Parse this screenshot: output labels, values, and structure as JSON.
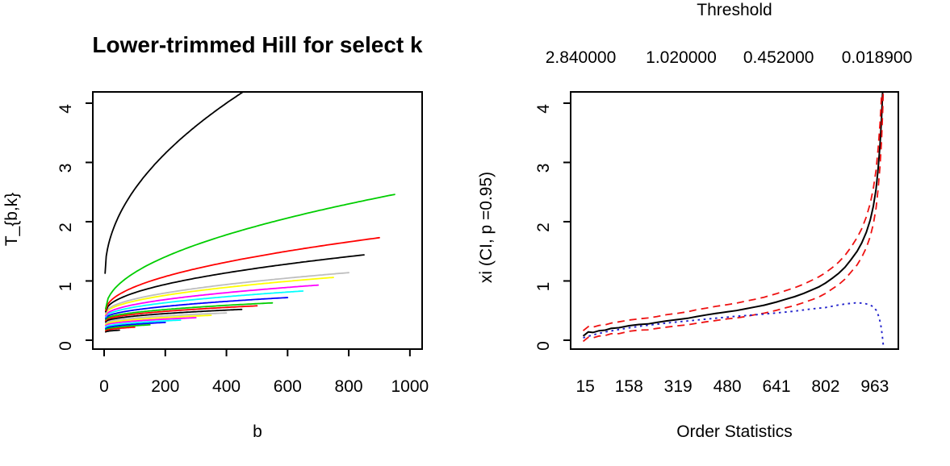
{
  "chart_data": [
    {
      "type": "line",
      "title": "Lower-trimmed Hill for select k",
      "xlabel": "b",
      "ylabel": "T_{b,k}",
      "xlim": [
        -37,
        1040
      ],
      "ylim": [
        -0.15,
        4.19
      ],
      "xticks": [
        0,
        200,
        400,
        600,
        800,
        1000
      ],
      "yticks": [
        0,
        1,
        2,
        3,
        4
      ],
      "grid": false,
      "legend": "none",
      "curve_model": "y = y0 + (y1-y0)*sqrt((x-x0)/(x1-x0))",
      "curves": [
        {
          "name": "trimmed-hill-k1",
          "color": "#000000",
          "x0": 5,
          "y0": 0.14,
          "x1": 50,
          "y1": 0.17
        },
        {
          "name": "trimmed-hill-k2",
          "color": "#FF0000",
          "x0": 5,
          "y0": 0.16,
          "x1": 100,
          "y1": 0.22
        },
        {
          "name": "trimmed-hill-k3",
          "color": "#00CD00",
          "x0": 5,
          "y0": 0.18,
          "x1": 150,
          "y1": 0.26
        },
        {
          "name": "trimmed-hill-k4",
          "color": "#0000FF",
          "x0": 5,
          "y0": 0.2,
          "x1": 200,
          "y1": 0.3
        },
        {
          "name": "trimmed-hill-k5",
          "color": "#00FFFF",
          "x0": 5,
          "y0": 0.22,
          "x1": 250,
          "y1": 0.34
        },
        {
          "name": "trimmed-hill-k6",
          "color": "#FF00FF",
          "x0": 5,
          "y0": 0.25,
          "x1": 300,
          "y1": 0.38
        },
        {
          "name": "trimmed-hill-k7",
          "color": "#FFFF00",
          "x0": 5,
          "y0": 0.27,
          "x1": 350,
          "y1": 0.42
        },
        {
          "name": "trimmed-hill-k8",
          "color": "#BEBEBE",
          "x0": 5,
          "y0": 0.29,
          "x1": 400,
          "y1": 0.46
        },
        {
          "name": "trimmed-hill-k9",
          "color": "#000000",
          "x0": 5,
          "y0": 0.31,
          "x1": 450,
          "y1": 0.52
        },
        {
          "name": "trimmed-hill-k10",
          "color": "#FF0000",
          "x0": 5,
          "y0": 0.33,
          "x1": 500,
          "y1": 0.58
        },
        {
          "name": "trimmed-hill-k11",
          "color": "#00CD00",
          "x0": 5,
          "y0": 0.35,
          "x1": 550,
          "y1": 0.63
        },
        {
          "name": "trimmed-hill-k12",
          "color": "#0000FF",
          "x0": 5,
          "y0": 0.37,
          "x1": 600,
          "y1": 0.72
        },
        {
          "name": "trimmed-hill-k13",
          "color": "#00FFFF",
          "x0": 5,
          "y0": 0.39,
          "x1": 650,
          "y1": 0.83
        },
        {
          "name": "trimmed-hill-k14",
          "color": "#FF00FF",
          "x0": 5,
          "y0": 0.41,
          "x1": 700,
          "y1": 0.93
        },
        {
          "name": "trimmed-hill-k15",
          "color": "#FFFF00",
          "x0": 5,
          "y0": 0.44,
          "x1": 750,
          "y1": 1.06
        },
        {
          "name": "trimmed-hill-k16",
          "color": "#BEBEBE",
          "x0": 5,
          "y0": 0.46,
          "x1": 800,
          "y1": 1.14
        },
        {
          "name": "trimmed-hill-k17",
          "color": "#000000",
          "x0": 5,
          "y0": 0.48,
          "x1": 850,
          "y1": 1.44
        },
        {
          "name": "trimmed-hill-k18",
          "color": "#FF0000",
          "x0": 5,
          "y0": 0.5,
          "x1": 900,
          "y1": 1.73
        },
        {
          "name": "trimmed-hill-k19",
          "color": "#00CD00",
          "x0": 5,
          "y0": 0.53,
          "x1": 950,
          "y1": 2.46
        },
        {
          "name": "trimmed-hill-k20",
          "color": "#000000",
          "x0": 3,
          "y0": 1.13,
          "x1": 475,
          "y1": 4.26
        }
      ]
    },
    {
      "type": "line",
      "top_axis_title": "Threshold",
      "top_ticks": [
        {
          "label": "2.840000",
          "x": 0
        },
        {
          "label": "1.020000",
          "x": 329
        },
        {
          "label": "0.452000",
          "x": 648
        },
        {
          "label": "0.018900",
          "x": 970
        }
      ],
      "xlabel": "Order Statistics",
      "ylabel": "xi (CI, p =0.95)",
      "xlim": [
        -33,
        1040
      ],
      "ylim": [
        -0.15,
        4.19
      ],
      "xticks": [
        15,
        158,
        319,
        480,
        641,
        802,
        963
      ],
      "yticks": [
        0,
        1,
        2,
        3,
        4
      ],
      "grid": false,
      "legend": "none",
      "series": [
        {
          "name": "xi-estimate",
          "color": "#000000",
          "style": "solid",
          "width": 2,
          "points": [
            [
              8,
              0.07
            ],
            [
              25,
              0.14
            ],
            [
              40,
              0.13
            ],
            [
              60,
              0.16
            ],
            [
              80,
              0.17
            ],
            [
              100,
              0.2
            ],
            [
              125,
              0.21
            ],
            [
              158,
              0.245
            ],
            [
              190,
              0.265
            ],
            [
              220,
              0.275
            ],
            [
              250,
              0.3
            ],
            [
              280,
              0.325
            ],
            [
              319,
              0.35
            ],
            [
              350,
              0.37
            ],
            [
              380,
              0.4
            ],
            [
              410,
              0.425
            ],
            [
              440,
              0.45
            ],
            [
              480,
              0.48
            ],
            [
              510,
              0.5
            ],
            [
              540,
              0.53
            ],
            [
              570,
              0.56
            ],
            [
              600,
              0.59
            ],
            [
              641,
              0.645
            ],
            [
              670,
              0.69
            ],
            [
              700,
              0.735
            ],
            [
              730,
              0.79
            ],
            [
              760,
              0.855
            ],
            [
              780,
              0.9
            ],
            [
              802,
              0.965
            ],
            [
              825,
              1.05
            ],
            [
              845,
              1.13
            ],
            [
              865,
              1.23
            ],
            [
              885,
              1.36
            ],
            [
              905,
              1.5
            ],
            [
              920,
              1.64
            ],
            [
              935,
              1.82
            ],
            [
              948,
              2.03
            ],
            [
              958,
              2.26
            ],
            [
              967,
              2.55
            ],
            [
              974,
              2.9
            ],
            [
              980,
              3.3
            ],
            [
              985,
              3.75
            ],
            [
              989,
              4.25
            ]
          ]
        },
        {
          "name": "ci-upper",
          "color": "#EE1111",
          "style": "dashed",
          "width": 1.8,
          "points": [
            [
              8,
              0.16
            ],
            [
              25,
              0.23
            ],
            [
              40,
              0.22
            ],
            [
              60,
              0.25
            ],
            [
              80,
              0.26
            ],
            [
              100,
              0.29
            ],
            [
              125,
              0.31
            ],
            [
              158,
              0.34
            ],
            [
              190,
              0.36
            ],
            [
              220,
              0.375
            ],
            [
              250,
              0.4
            ],
            [
              280,
              0.43
            ],
            [
              319,
              0.455
            ],
            [
              350,
              0.48
            ],
            [
              380,
              0.515
            ],
            [
              410,
              0.54
            ],
            [
              440,
              0.57
            ],
            [
              480,
              0.6
            ],
            [
              510,
              0.625
            ],
            [
              540,
              0.66
            ],
            [
              570,
              0.69
            ],
            [
              600,
              0.725
            ],
            [
              641,
              0.785
            ],
            [
              670,
              0.835
            ],
            [
              700,
              0.885
            ],
            [
              730,
              0.945
            ],
            [
              760,
              1.02
            ],
            [
              780,
              1.07
            ],
            [
              802,
              1.14
            ],
            [
              825,
              1.23
            ],
            [
              845,
              1.32
            ],
            [
              865,
              1.43
            ],
            [
              885,
              1.57
            ],
            [
              905,
              1.73
            ],
            [
              920,
              1.88
            ],
            [
              935,
              2.08
            ],
            [
              948,
              2.31
            ],
            [
              958,
              2.56
            ],
            [
              967,
              2.87
            ],
            [
              974,
              3.24
            ],
            [
              980,
              3.66
            ],
            [
              985,
              4.13
            ],
            [
              987,
              4.3
            ]
          ]
        },
        {
          "name": "ci-lower",
          "color": "#EE1111",
          "style": "dashed",
          "width": 1.8,
          "points": [
            [
              8,
              -0.02
            ],
            [
              25,
              0.05
            ],
            [
              40,
              0.04
            ],
            [
              60,
              0.07
            ],
            [
              80,
              0.08
            ],
            [
              100,
              0.11
            ],
            [
              125,
              0.11
            ],
            [
              158,
              0.15
            ],
            [
              190,
              0.17
            ],
            [
              220,
              0.175
            ],
            [
              250,
              0.2
            ],
            [
              280,
              0.22
            ],
            [
              319,
              0.245
            ],
            [
              350,
              0.26
            ],
            [
              380,
              0.285
            ],
            [
              410,
              0.31
            ],
            [
              440,
              0.33
            ],
            [
              480,
              0.36
            ],
            [
              510,
              0.375
            ],
            [
              540,
              0.4
            ],
            [
              570,
              0.43
            ],
            [
              600,
              0.455
            ],
            [
              641,
              0.505
            ],
            [
              670,
              0.545
            ],
            [
              700,
              0.585
            ],
            [
              730,
              0.635
            ],
            [
              760,
              0.69
            ],
            [
              780,
              0.73
            ],
            [
              802,
              0.79
            ],
            [
              825,
              0.87
            ],
            [
              845,
              0.94
            ],
            [
              865,
              1.03
            ],
            [
              885,
              1.15
            ],
            [
              905,
              1.27
            ],
            [
              920,
              1.4
            ],
            [
              935,
              1.56
            ],
            [
              948,
              1.75
            ],
            [
              958,
              1.96
            ],
            [
              967,
              2.23
            ],
            [
              974,
              2.56
            ],
            [
              980,
              2.94
            ],
            [
              985,
              3.37
            ],
            [
              989,
              3.9
            ],
            [
              991,
              4.3
            ]
          ]
        },
        {
          "name": "alt-estimate",
          "color": "#2222CC",
          "style": "dotted",
          "width": 1.9,
          "points": [
            [
              8,
              0.04
            ],
            [
              40,
              0.09
            ],
            [
              80,
              0.14
            ],
            [
              120,
              0.175
            ],
            [
              160,
              0.21
            ],
            [
              200,
              0.24
            ],
            [
              250,
              0.27
            ],
            [
              300,
              0.3
            ],
            [
              350,
              0.325
            ],
            [
              400,
              0.35
            ],
            [
              450,
              0.375
            ],
            [
              500,
              0.4
            ],
            [
              550,
              0.42
            ],
            [
              600,
              0.44
            ],
            [
              650,
              0.465
            ],
            [
              700,
              0.49
            ],
            [
              750,
              0.525
            ],
            [
              800,
              0.55
            ],
            [
              840,
              0.59
            ],
            [
              870,
              0.615
            ],
            [
              900,
              0.63
            ],
            [
              925,
              0.625
            ],
            [
              945,
              0.6
            ],
            [
              958,
              0.565
            ],
            [
              968,
              0.5
            ],
            [
              976,
              0.4
            ],
            [
              982,
              0.27
            ],
            [
              987,
              0.1
            ],
            [
              991,
              -0.1
            ],
            [
              994,
              -0.16
            ]
          ]
        }
      ]
    }
  ]
}
